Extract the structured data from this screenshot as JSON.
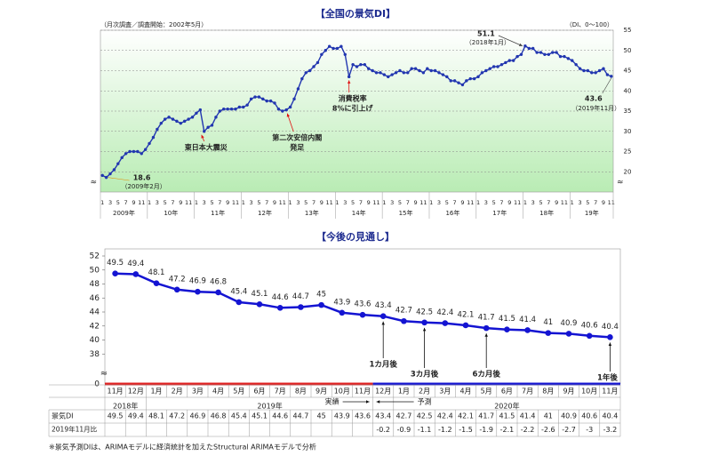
{
  "chart_data": [
    {
      "type": "line",
      "title": "【全国の景気DI】",
      "subtitle": "（月次調査／調査開始：2002年5月）",
      "unit_label": "（DI、0～100）",
      "color": "#2236b0",
      "values": [
        19.1,
        18.6,
        19.5,
        20.5,
        22.0,
        23.5,
        24.5,
        25.0,
        25.0,
        25.0,
        24.5,
        25.5,
        27.0,
        28.5,
        30.5,
        32.0,
        33.0,
        33.5,
        33.0,
        32.5,
        32.0,
        32.5,
        33.0,
        33.5,
        34.5,
        35.3,
        30.0,
        31.0,
        31.5,
        33.5,
        35.0,
        35.5,
        35.5,
        35.5,
        35.5,
        36.0,
        36.0,
        36.5,
        38.0,
        38.5,
        38.5,
        38.0,
        37.5,
        37.5,
        37.0,
        35.5,
        35.0,
        35.3,
        36.0,
        38.0,
        40.5,
        43.0,
        44.5,
        45.0,
        46.0,
        47.0,
        49.0,
        50.0,
        51.0,
        50.5,
        50.5,
        51.0,
        49.0,
        43.5,
        46.5,
        46.0,
        46.5,
        46.5,
        45.5,
        45.0,
        44.5,
        44.5,
        44.0,
        43.5,
        44.0,
        44.5,
        45.0,
        44.5,
        44.5,
        45.5,
        45.5,
        45.0,
        44.5,
        45.5,
        45.0,
        45.0,
        44.5,
        44.0,
        43.5,
        42.5,
        42.5,
        42.0,
        41.5,
        42.5,
        43.0,
        43.0,
        43.5,
        44.5,
        45.0,
        45.5,
        46.0,
        46.0,
        46.5,
        47.0,
        47.5,
        47.5,
        48.5,
        49.0,
        51.1,
        50.5,
        50.5,
        49.5,
        49.5,
        49.0,
        49.0,
        49.5,
        49.5,
        48.5,
        48.5,
        48.0,
        47.5,
        46.5,
        45.5,
        45.0,
        45.0,
        44.5,
        44.5,
        45.0,
        45.5,
        44.0,
        43.6
      ],
      "x_month_labels": [
        "1",
        "3",
        "5",
        "7",
        "9",
        "11"
      ],
      "x_year_labels": [
        "2009年",
        "10年",
        "11年",
        "12年",
        "13年",
        "14年",
        "15年",
        "16年",
        "17年",
        "18年",
        "19年"
      ],
      "ylim": [
        15,
        55
      ],
      "yticks": [
        20,
        25,
        30,
        35,
        40,
        45,
        50,
        55
      ],
      "grid": true,
      "annotations": [
        "（2009年2月）",
        "東日本大震災",
        "第二次安倍内閣",
        "発足",
        "消費税率",
        "8%に引上げ",
        "（2018年1月）",
        "（2019年11月）"
      ]
    },
    {
      "type": "line",
      "title": "【今後の見通し】",
      "color": "#1414d2",
      "categories": [
        "11月",
        "12月",
        "1月",
        "2月",
        "3月",
        "4月",
        "5月",
        "6月",
        "7月",
        "8月",
        "9月",
        "10月",
        "11月",
        "12月",
        "1月",
        "2月",
        "3月",
        "4月",
        "5月",
        "6月",
        "7月",
        "8月",
        "9月",
        "10月",
        "11月"
      ],
      "year_labels": [
        "2018年",
        "2019年",
        "2020年"
      ],
      "values": [
        49.5,
        49.4,
        48.1,
        47.2,
        46.9,
        46.8,
        45.4,
        45.1,
        44.6,
        44.7,
        45.0,
        43.9,
        43.6,
        43.4,
        42.7,
        42.5,
        42.4,
        42.1,
        41.7,
        41.5,
        41.4,
        41.0,
        40.9,
        40.6,
        40.4
      ],
      "ylim": [
        36,
        52
      ],
      "yticks": [
        38,
        40,
        42,
        44,
        46,
        48,
        50,
        52
      ],
      "axis_break_label": "0",
      "annotations": [
        "1カ月後",
        "3カ月後",
        "6カ月後",
        "1年後",
        "実績",
        "予測"
      ],
      "table": {
        "row_labels": [
          "景気DI",
          "2019年11月比"
        ],
        "comparison": [
          null,
          null,
          null,
          null,
          null,
          null,
          null,
          null,
          null,
          null,
          null,
          null,
          null,
          -0.2,
          -0.9,
          -1.1,
          -1.2,
          -1.5,
          -1.9,
          -2.1,
          -2.2,
          -2.6,
          -2.7,
          -3.0,
          -3.2
        ]
      },
      "footnote": "※景気予測DIは、ARIMAモデルに経済統計を加えたStructural ARIMAモデルで分析"
    }
  ]
}
